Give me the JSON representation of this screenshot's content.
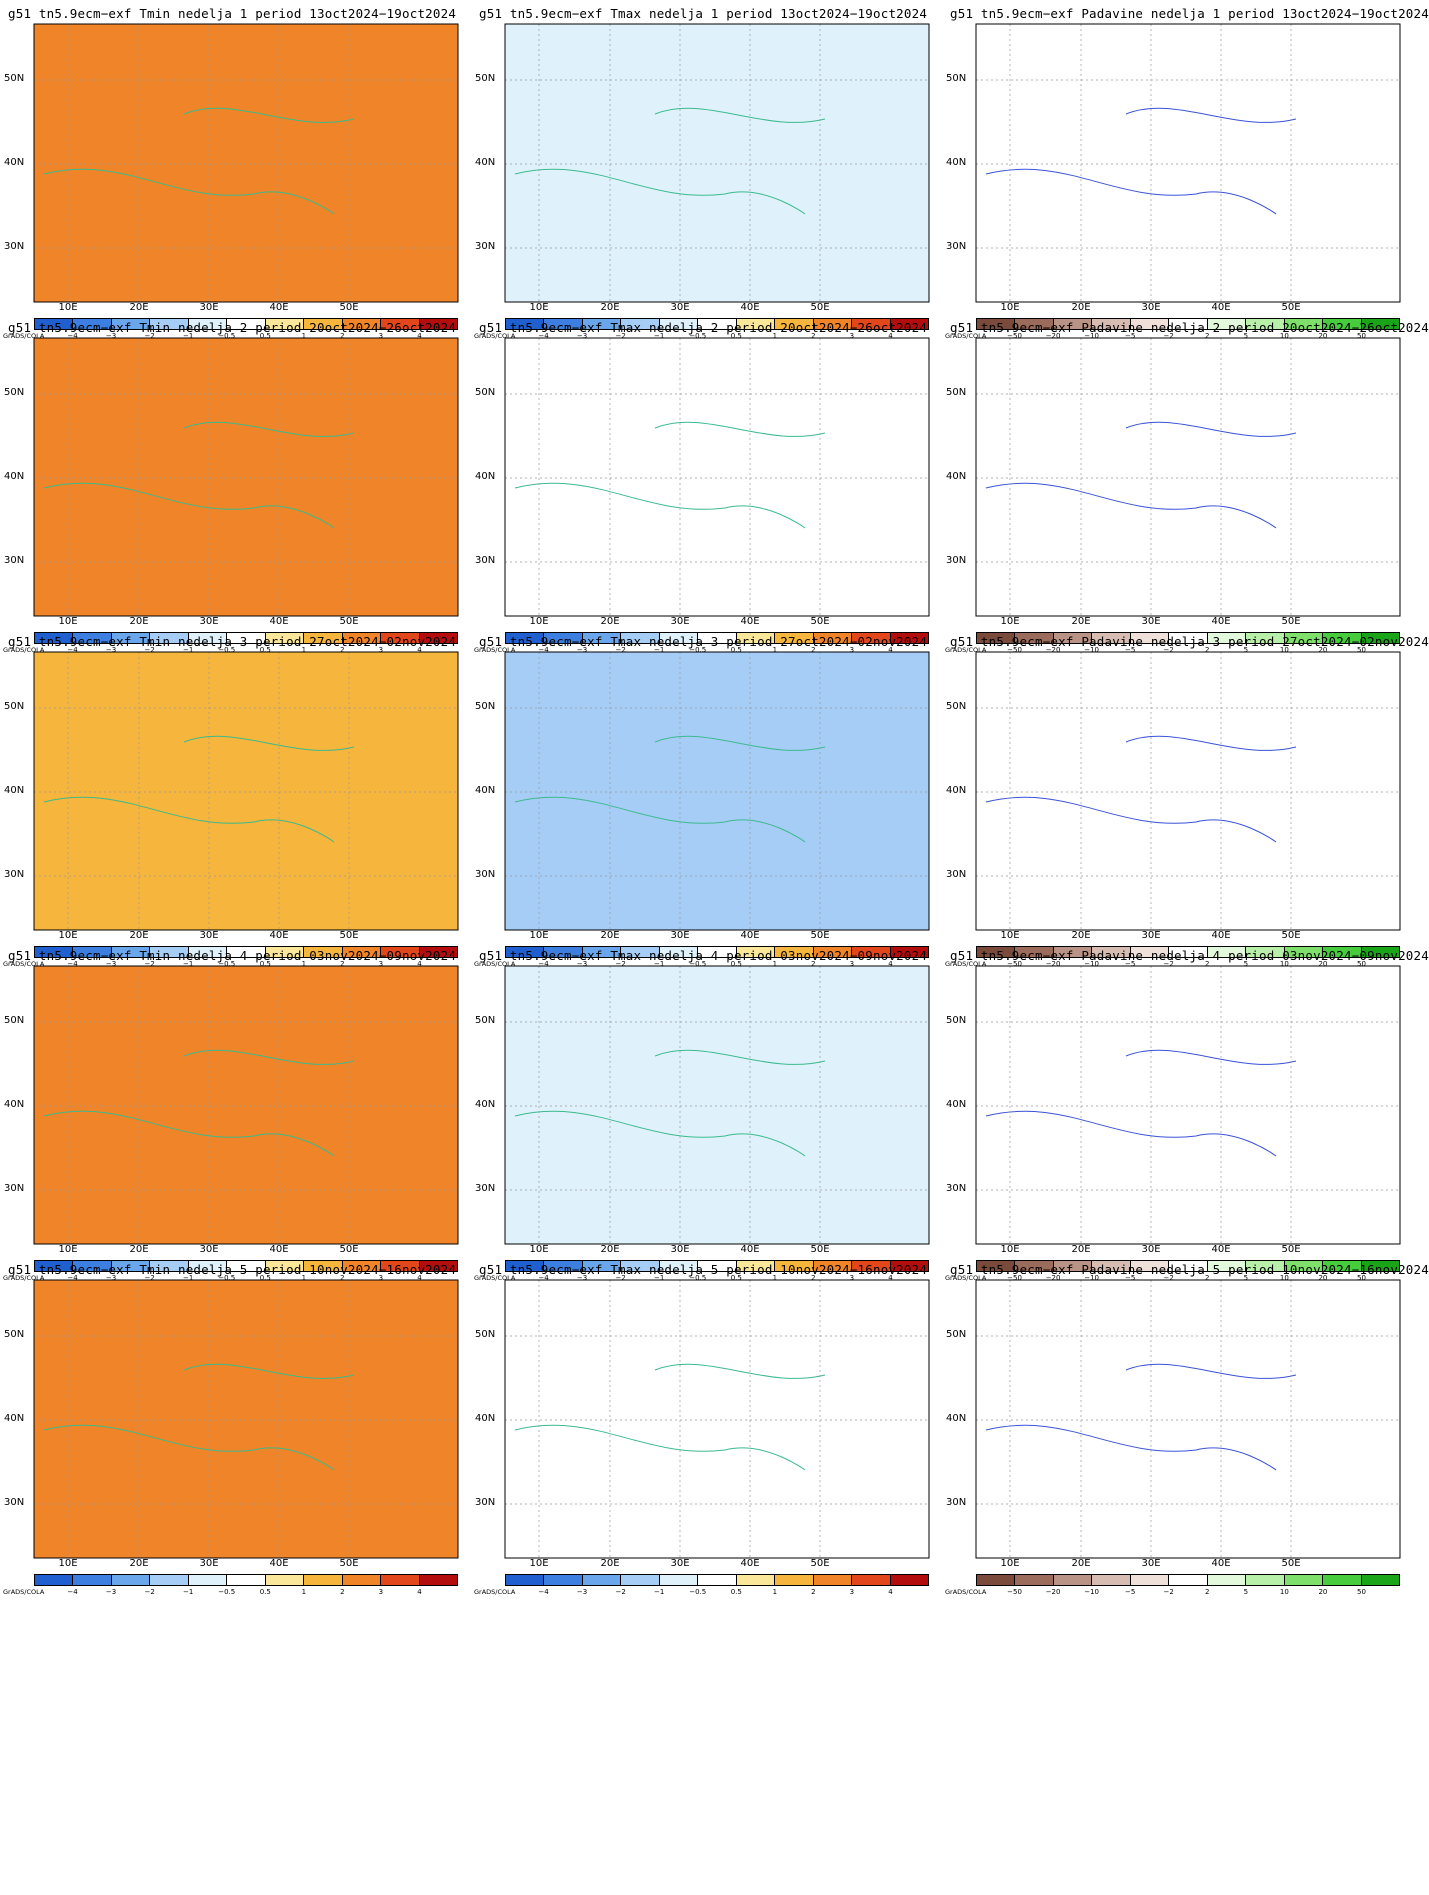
{
  "rows": [
    {
      "week": "1",
      "period": "13oct2024–19oct2024"
    },
    {
      "week": "2",
      "period": "20oct2024–26oct2024"
    },
    {
      "week": "3",
      "period": "27oct2024–02nov2024"
    },
    {
      "week": "4",
      "period": "03nov2024–09nov2024"
    },
    {
      "week": "5",
      "period": "10nov2024–16nov2024"
    }
  ],
  "panels": [
    {
      "title": "g51  tn5.9ecm−exf Tmin nedelja 1 period 13oct2024−19oct2024",
      "variable": "Tmin",
      "scheme": "temp",
      "dominant": 8
    },
    {
      "title": "g51  tn5.9ecm−exf Tmax nedelja 1 period 13oct2024−19oct2024",
      "variable": "Tmax",
      "scheme": "temp",
      "dominant": 4
    },
    {
      "title": "g51  tn5.9ecm−exf Padavine nedelja 1 period 13oct2024−19oct2024",
      "variable": "Padavine",
      "scheme": "precip",
      "dominant": 5
    },
    {
      "title": "g51  tn5.9ecm−exf Tmin nedelja 2 period 20oct2024−26oct2024",
      "variable": "Tmin",
      "scheme": "temp",
      "dominant": 8
    },
    {
      "title": "g51  tn5.9ecm−exf Tmax nedelja 2 period 20oct2024−26oct2024",
      "variable": "Tmax",
      "scheme": "temp",
      "dominant": 5
    },
    {
      "title": "g51  tn5.9ecm−exf Padavine nedelja 2 period 20oct2024−26oct2024",
      "variable": "Padavine",
      "scheme": "precip",
      "dominant": 5
    },
    {
      "title": "g51  tn5.9ecm−exf Tmin nedelja 3 period 27oct2024−02nov2024",
      "variable": "Tmin",
      "scheme": "temp",
      "dominant": 7
    },
    {
      "title": "g51  tn5.9ecm−exf Tmax nedelja 3 period 27oct2024−02nov2024",
      "variable": "Tmax",
      "scheme": "temp",
      "dominant": 3
    },
    {
      "title": "g51  tn5.9ecm−exf Padavine nedelja 3 period 27oct2024−02nov2024",
      "variable": "Padavine",
      "scheme": "precip",
      "dominant": 5
    },
    {
      "title": "g51  tn5.9ecm−exf Tmin nedelja 4 period 03nov2024−09nov2024",
      "variable": "Tmin",
      "scheme": "temp",
      "dominant": 8
    },
    {
      "title": "g51  tn5.9ecm−exf Tmax nedelja 4 period 03nov2024−09nov2024",
      "variable": "Tmax",
      "scheme": "temp",
      "dominant": 4
    },
    {
      "title": "g51  tn5.9ecm−exf Padavine nedelja 4 period 03nov2024−09nov2024",
      "variable": "Padavine",
      "scheme": "precip",
      "dominant": 5
    },
    {
      "title": "g51  tn5.9ecm−exf Tmin nedelja 5 period 10nov2024−16nov2024",
      "variable": "Tmin",
      "scheme": "temp",
      "dominant": 8
    },
    {
      "title": "g51  tn5.9ecm−exf Tmax nedelja 5 period 10nov2024−16nov2024",
      "variable": "Tmax",
      "scheme": "temp",
      "dominant": 5
    },
    {
      "title": "g51  tn5.9ecm−exf Padavine nedelja 5 period 10nov2024−16nov2024",
      "variable": "Padavine",
      "scheme": "precip",
      "dominant": 5
    }
  ],
  "axes": {
    "lat_labels": [
      "50N",
      "40N",
      "30N"
    ],
    "lon_labels": [
      "10E",
      "20E",
      "30E",
      "40E",
      "50E"
    ]
  },
  "colorbars": {
    "credit": "GrADS/COLA",
    "temp": {
      "colors": [
        "#1f5fcf",
        "#3c7fe0",
        "#6aa6ec",
        "#a6cdf6",
        "#dff2fc",
        "#ffffff",
        "#fbe79a",
        "#f6b53c",
        "#f08428",
        "#e2471c",
        "#b40d0d"
      ],
      "ticks": [
        "−4",
        "−3",
        "−2",
        "−1",
        "−0.5",
        "0.5",
        "1",
        "2",
        "3",
        "4"
      ]
    },
    "precip": {
      "colors": [
        "#7a4a3a",
        "#9b6b5b",
        "#b99385",
        "#d7bcb1",
        "#efe0da",
        "#ffffff",
        "#e3f9dc",
        "#b9f0a9",
        "#7ee06a",
        "#46cc3c",
        "#1aa418"
      ],
      "ticks": [
        "−50",
        "−20",
        "−10",
        "−5",
        "−2",
        "2",
        "5",
        "10",
        "20",
        "50"
      ]
    }
  }
}
